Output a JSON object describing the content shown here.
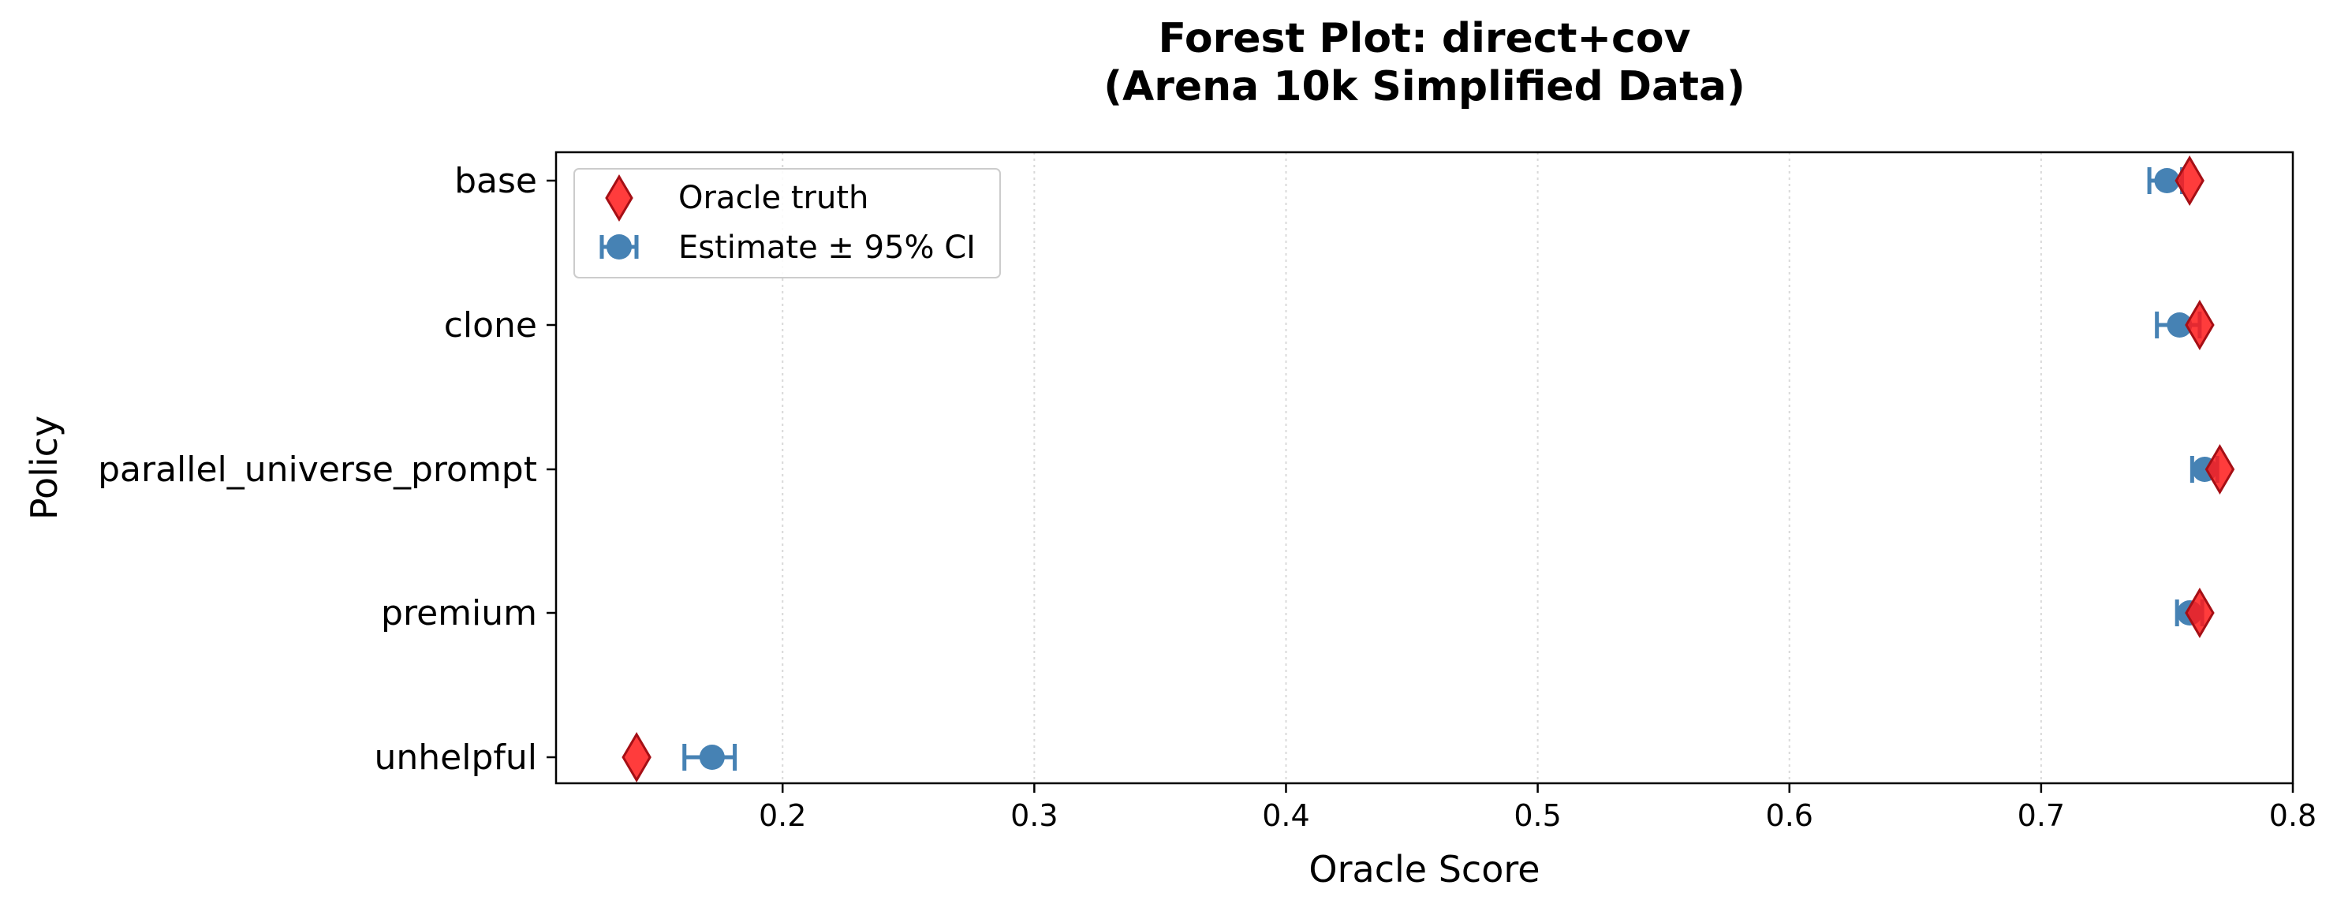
{
  "chart_data": {
    "type": "scatter",
    "title_line1": "Forest Plot: direct+cov",
    "title_line2": "(Arena 10k Simplified Data)",
    "xlabel": "Oracle Score",
    "ylabel": "Policy",
    "xlim": [
      0.11,
      0.8
    ],
    "xticks": [
      0.2,
      0.3,
      0.4,
      0.5,
      0.6,
      0.7,
      0.8
    ],
    "xtick_labels": [
      "0.2",
      "0.3",
      "0.4",
      "0.5",
      "0.6",
      "0.7",
      "0.8"
    ],
    "grid": "vertical dotted",
    "categories": [
      "base",
      "clone",
      "parallel_universe_prompt",
      "premium",
      "unhelpful"
    ],
    "series": [
      {
        "name": "Estimate ± 95% CI",
        "values": [
          0.75,
          0.755,
          0.765,
          0.759,
          0.172
        ],
        "ci_low": [
          0.743,
          0.746,
          0.76,
          0.754,
          0.161
        ],
        "ci_high": [
          0.756,
          0.763,
          0.77,
          0.764,
          0.181
        ]
      },
      {
        "name": "Oracle truth",
        "values": [
          0.759,
          0.763,
          0.771,
          0.763,
          0.142
        ]
      }
    ],
    "legend": {
      "position": "top-left",
      "items": [
        "Oracle truth",
        "Estimate ± 95% CI"
      ]
    },
    "colors": {
      "estimate": "#4682b4",
      "oracle_fill": "#ff1a1a",
      "oracle_edge": "#a50f15",
      "grid": "#d9d9d9"
    }
  }
}
